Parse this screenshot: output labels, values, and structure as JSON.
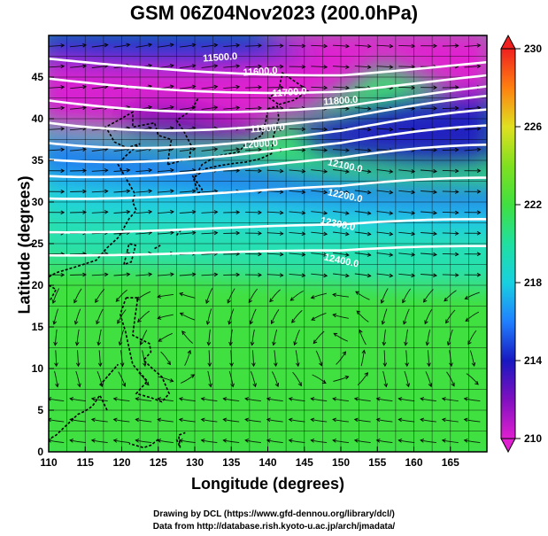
{
  "title": "GSM 06Z04Nov2023 (200.0hPa)",
  "xlabel": "Longitude (degrees)",
  "ylabel": "Latitude (degrees)",
  "credit_line1": "Drawing by DCL (https://www.gfd-dennou.org/library/dcl/)",
  "credit_line2": "Data from http://database.rish.kyoto-u.ac.jp/arch/jmadata/",
  "chart_data": {
    "type": "heatmap",
    "xlim": [
      110,
      170
    ],
    "ylim": [
      0,
      50
    ],
    "x_ticks": [
      110,
      115,
      120,
      125,
      130,
      135,
      140,
      145,
      150,
      155,
      160,
      165
    ],
    "y_ticks": [
      0,
      5,
      10,
      15,
      20,
      25,
      30,
      35,
      40,
      45
    ],
    "colorbar": {
      "min": 210,
      "max": 230,
      "ticks": [
        210,
        214,
        218,
        222,
        226,
        230
      ],
      "colors": [
        "#e020d0",
        "#8010c0",
        "#1818c0",
        "#2080ff",
        "#18d0e0",
        "#20e0a0",
        "#30e060",
        "#50e020",
        "#a0e020",
        "#f0e020",
        "#ff8010",
        "#f02020"
      ]
    },
    "contour_levels": [
      {
        "value": 11500.0,
        "label": "11500.0"
      },
      {
        "value": 11600.0,
        "label": "11600.0"
      },
      {
        "value": 11700.0,
        "label": "11700.0"
      },
      {
        "value": 11800.0,
        "label": "11800.0"
      },
      {
        "value": 11900.0,
        "label": "11900.0"
      },
      {
        "value": 12000.0,
        "label": "12000.0"
      },
      {
        "value": 12100.0,
        "label": "12100.0"
      },
      {
        "value": 12200.0,
        "label": "12200.0"
      },
      {
        "value": 12300.0,
        "label": "12300.0"
      },
      {
        "value": 12400.0,
        "label": "12400.0"
      }
    ],
    "grid": true,
    "streamlines": true
  }
}
